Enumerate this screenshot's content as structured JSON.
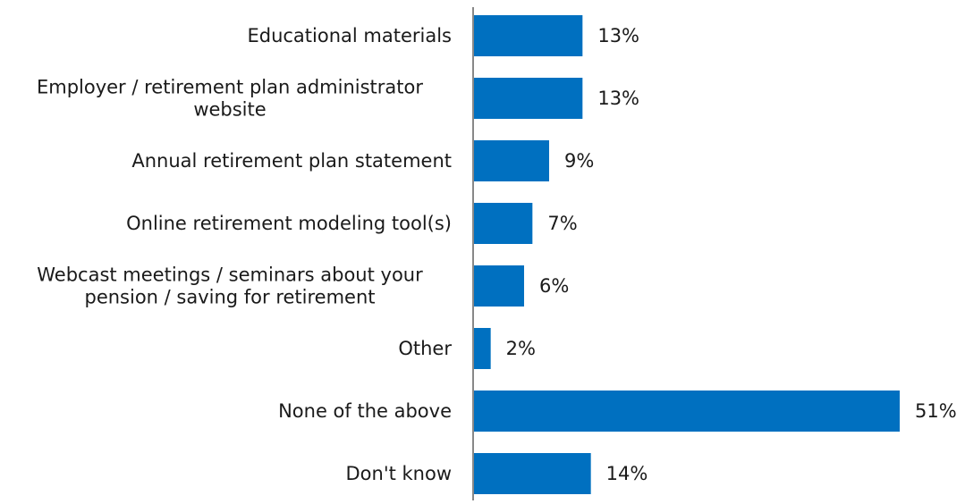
{
  "chart_data": {
    "type": "bar",
    "orientation": "horizontal",
    "title": "",
    "xlabel": "",
    "ylabel": "",
    "categories": [
      "Educational materials",
      "Employer / retirement plan administrator website",
      "Annual retirement plan statement",
      "Online retirement modeling tool(s)",
      "Webcast meetings / seminars about your pension / saving for retirement",
      "Other",
      "None of the above",
      "Don't know"
    ],
    "category_lines": [
      [
        "Educational materials"
      ],
      [
        "Employer / retirement plan administrator",
        "website"
      ],
      [
        "Annual retirement plan statement"
      ],
      [
        "Online retirement modeling tool(s)"
      ],
      [
        "Webcast meetings / seminars about your",
        "pension / saving for retirement"
      ],
      [
        "Other"
      ],
      [
        "None of the above"
      ],
      [
        "Don't know"
      ]
    ],
    "values": [
      13,
      13,
      9,
      7,
      6,
      2,
      51,
      14
    ],
    "data_labels": [
      "13%",
      "13%",
      "9%",
      "7%",
      "6%",
      "2%",
      "51%",
      "14%"
    ],
    "unit": "%",
    "xlim": [
      0,
      51
    ],
    "grid": false,
    "legend": "none",
    "colors": {
      "bar": "#0070C0",
      "axis": "#888888",
      "text": "#1a1a1a"
    }
  }
}
